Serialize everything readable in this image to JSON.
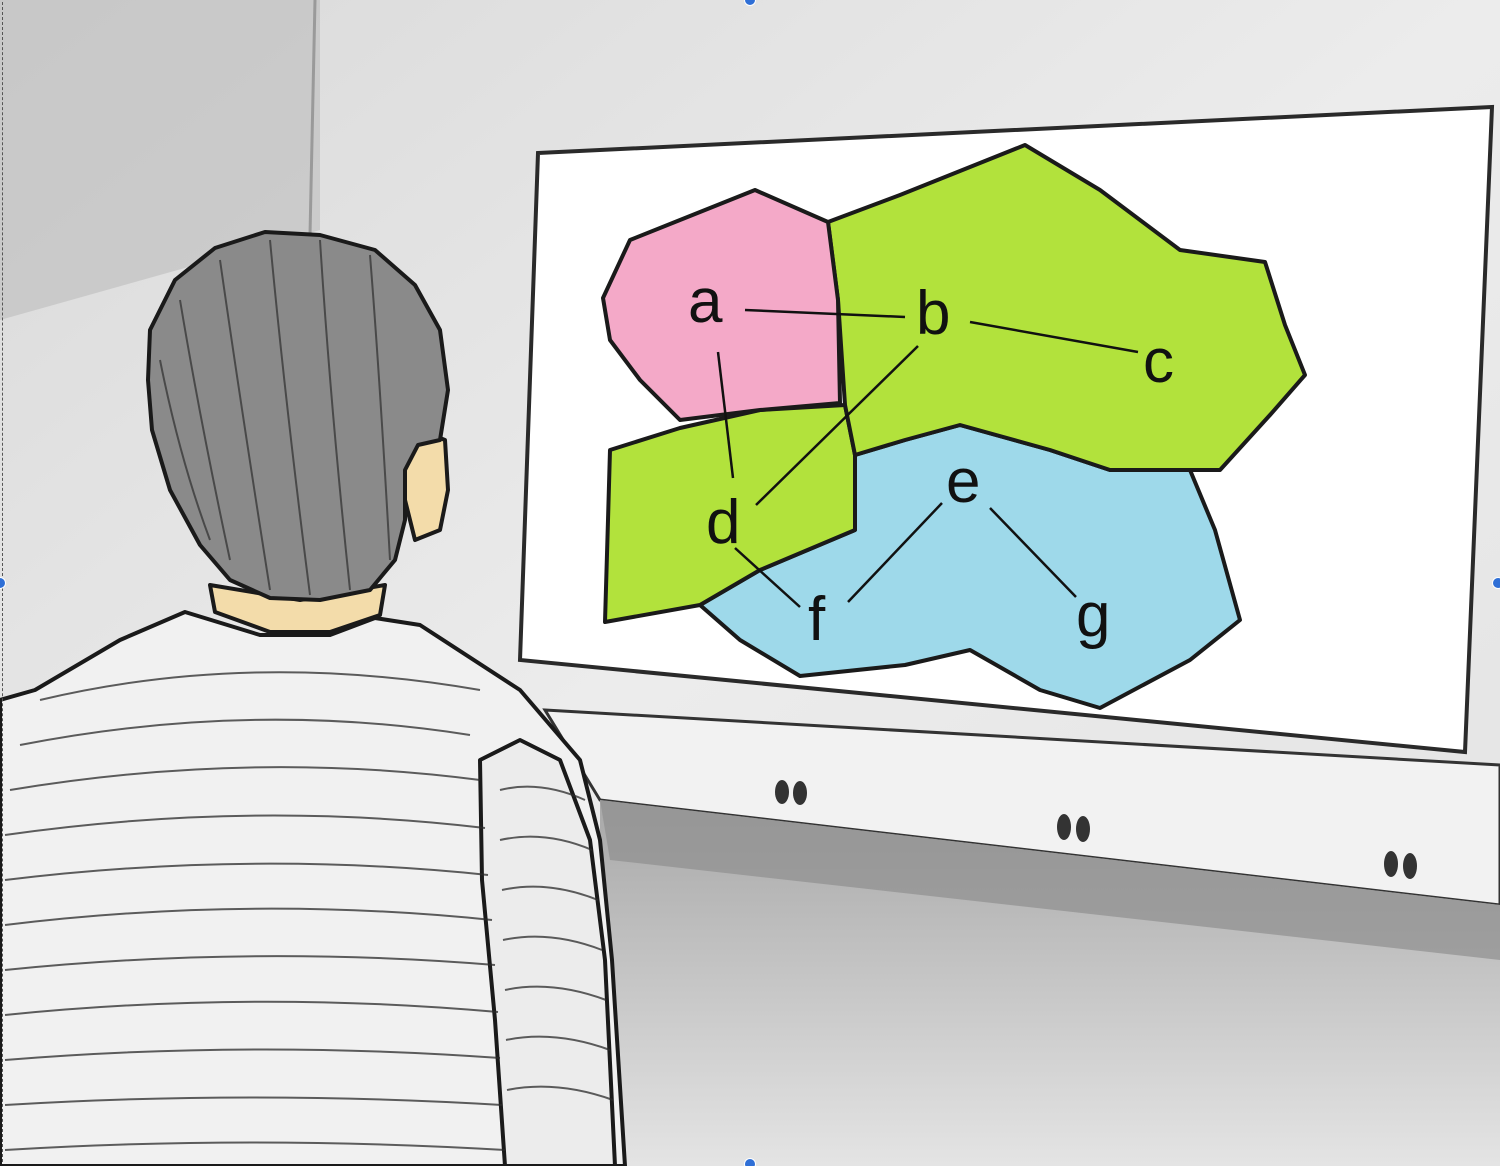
{
  "illustration": {
    "vertex_labels": [
      "a",
      "b",
      "c",
      "d",
      "e",
      "f",
      "g"
    ],
    "edges": [
      [
        "a",
        "b"
      ],
      [
        "b",
        "c"
      ],
      [
        "a",
        "d"
      ],
      [
        "b",
        "d"
      ],
      [
        "d",
        "f"
      ],
      [
        "e",
        "f"
      ],
      [
        "e",
        "g"
      ]
    ],
    "region_colors": {
      "pink": "#f4a9c8",
      "green": "#b2e23c",
      "blue": "#9ed9ea"
    }
  }
}
